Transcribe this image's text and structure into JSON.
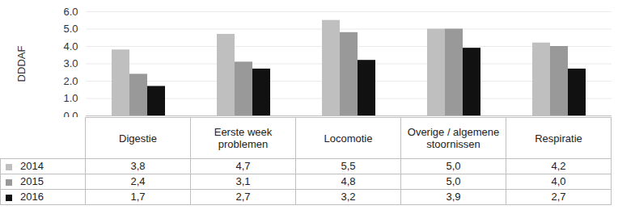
{
  "chart_data": {
    "type": "bar",
    "y_label": "DDDAF",
    "categories": [
      "Digestie",
      "Eerste week problemen",
      "Locomotie",
      "Overige / algemene stoornissen",
      "Respiratie"
    ],
    "series": [
      {
        "name": "2014",
        "color": "#bfbfbf",
        "values": [
          3.8,
          4.7,
          5.5,
          5.0,
          4.2
        ],
        "value_labels": [
          "3,8",
          "4,7",
          "5,5",
          "5,0",
          "4,2"
        ]
      },
      {
        "name": "2015",
        "color": "#999999",
        "values": [
          2.4,
          3.1,
          4.8,
          5.0,
          4.0
        ],
        "value_labels": [
          "2,4",
          "3,1",
          "4,8",
          "5,0",
          "4,0"
        ]
      },
      {
        "name": "2016",
        "color": "#111111",
        "values": [
          1.7,
          2.7,
          3.2,
          3.9,
          2.7
        ],
        "value_labels": [
          "1,7",
          "2,7",
          "3,2",
          "3,9",
          "2,7"
        ]
      }
    ],
    "ylim": [
      0,
      6
    ],
    "yticks": [
      0,
      1,
      2,
      3,
      4,
      5,
      6
    ],
    "grid": true,
    "legend": "bottom"
  }
}
